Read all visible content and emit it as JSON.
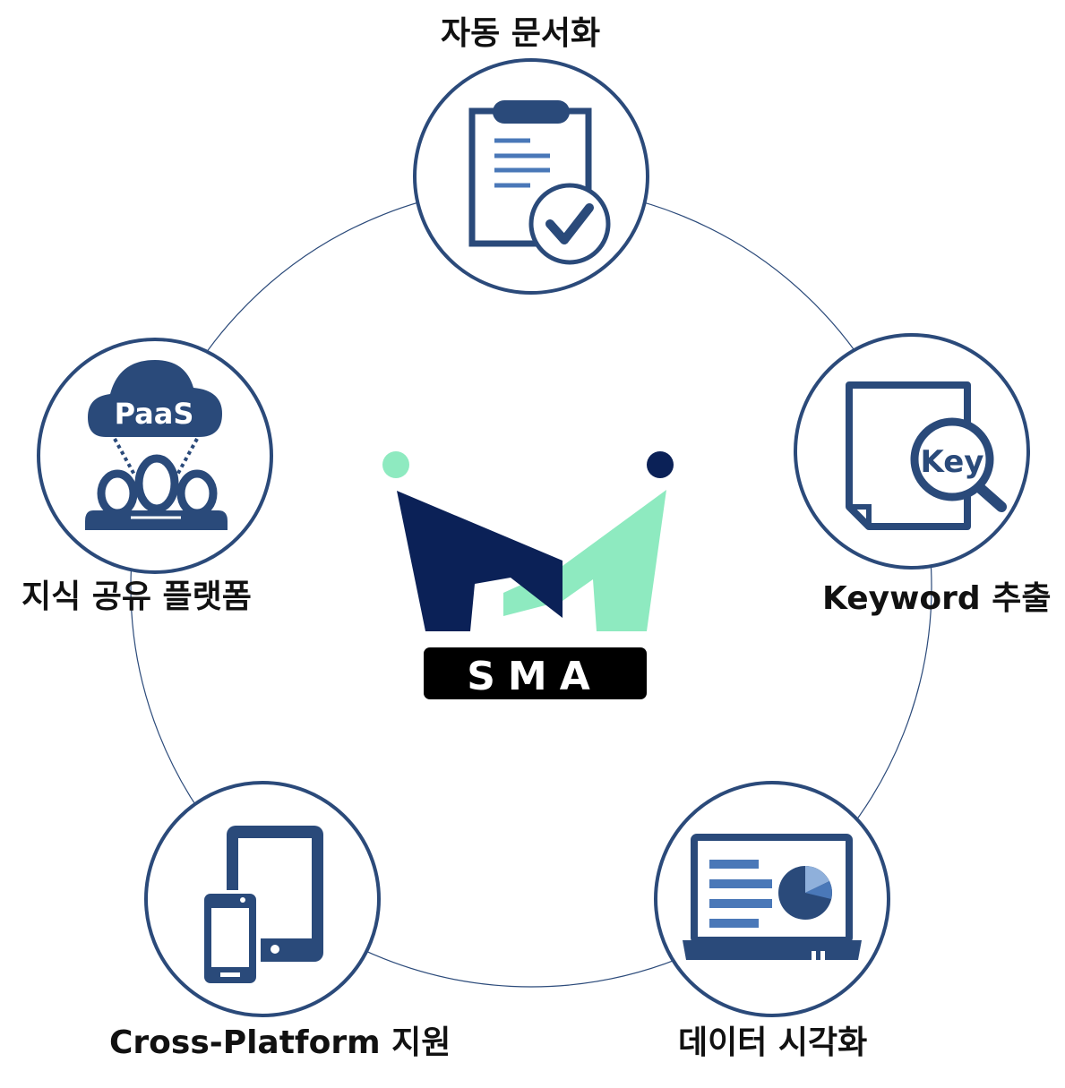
{
  "colors": {
    "node_stroke": "#2b4a7a",
    "icon_dark": "#2a4a7a",
    "icon_mid": "#4a78b8",
    "ring": "#2b4a7a",
    "logo_navy": "#0b2157",
    "logo_mint": "#8eeac0",
    "logo_badge": "#000000",
    "label_text": "#111111"
  },
  "center": {
    "logo_text": "SMA"
  },
  "nodes": [
    {
      "id": "documentation",
      "label": "자동 문서화",
      "icon": "clipboard-check-icon"
    },
    {
      "id": "keyword",
      "label": "Keyword 추출",
      "icon": "document-key-search-icon",
      "icon_text": "Key"
    },
    {
      "id": "visualization",
      "label": "데이터 시각화",
      "icon": "laptop-chart-icon"
    },
    {
      "id": "cross_platform",
      "label": "Cross-Platform 지원",
      "icon": "tablet-phone-icon"
    },
    {
      "id": "knowledge",
      "label": "지식 공유 플랫폼",
      "icon": "paas-cloud-icon",
      "icon_text": "PaaS"
    }
  ]
}
